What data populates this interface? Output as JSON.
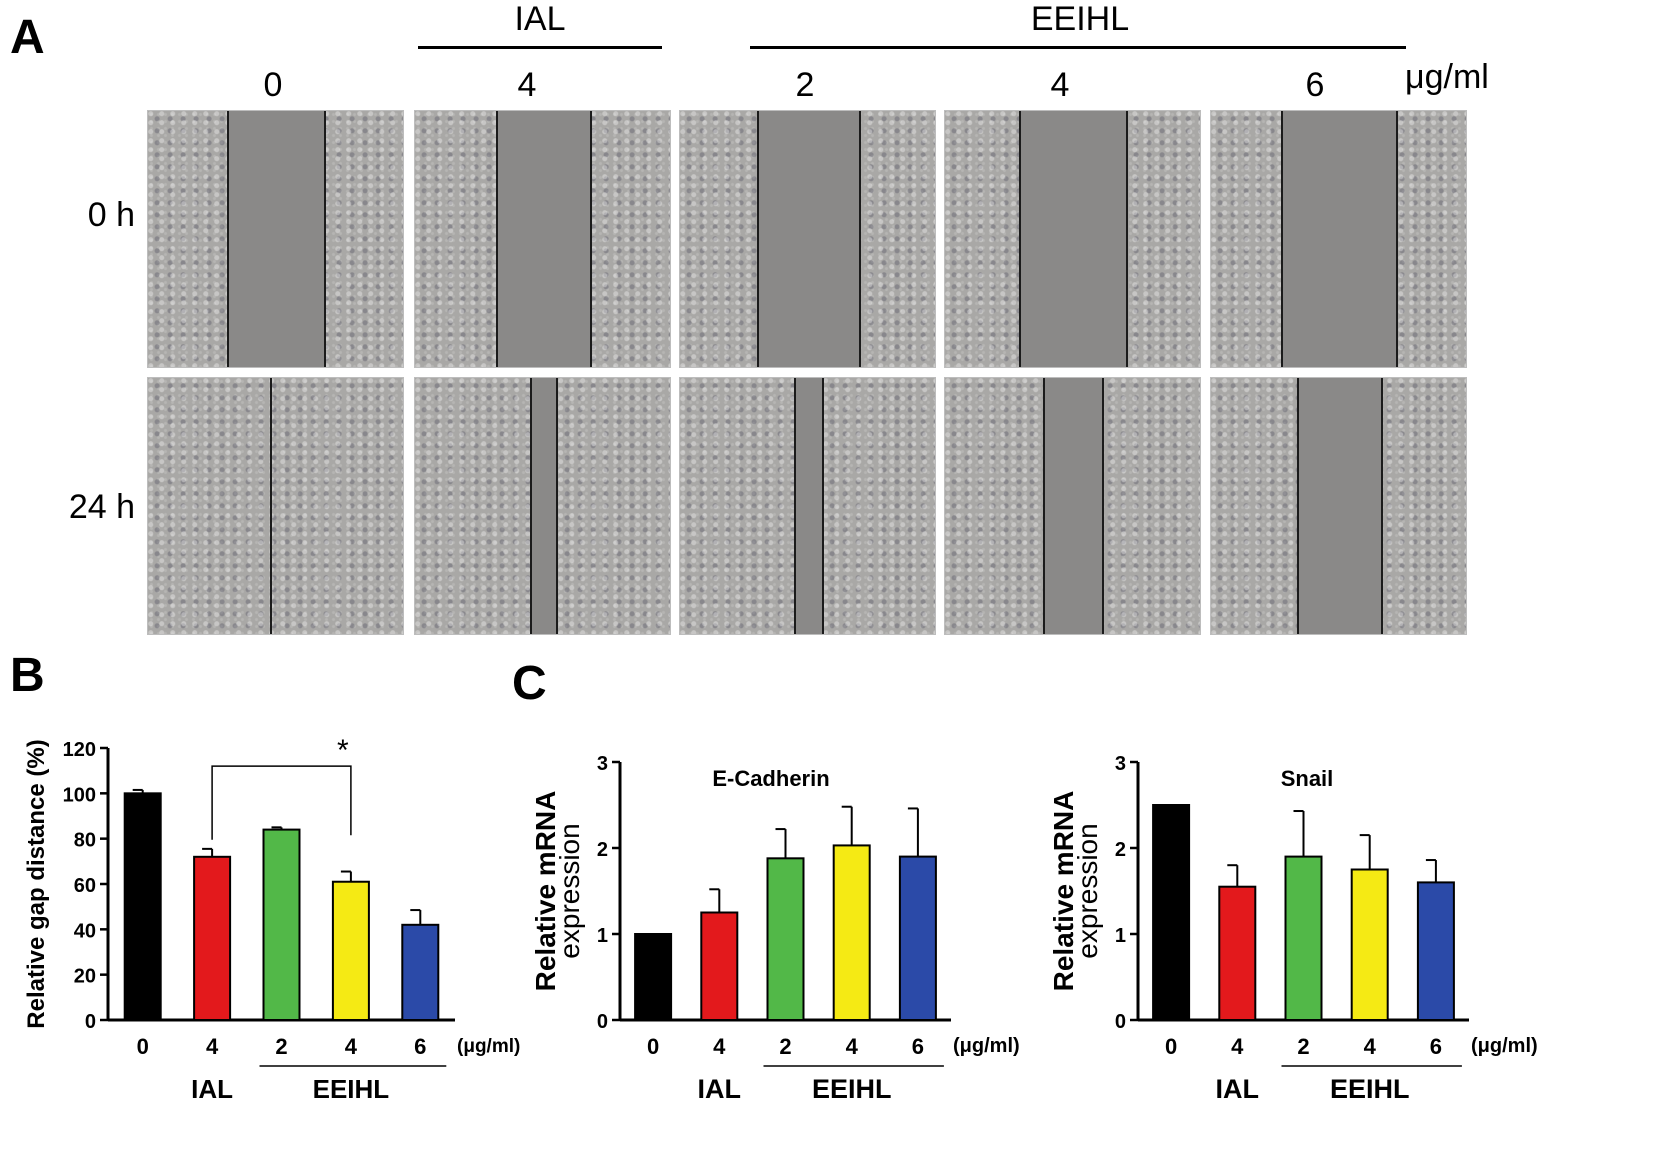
{
  "panels": {
    "a": "A",
    "b": "B",
    "c": "C"
  },
  "panel_a": {
    "group_ial": "IAL",
    "group_eeihl": "EEIHL",
    "doses": [
      "0",
      "4",
      "2",
      "4",
      "6"
    ],
    "unit": "μg/ml",
    "rows": [
      "0 h",
      "24 h"
    ],
    "gap_fraction_0h": [
      0.38,
      0.37,
      0.4,
      0.42,
      0.45
    ],
    "gap_fraction_24h": [
      0.0,
      0.1,
      0.11,
      0.23,
      0.33
    ]
  },
  "chart_data": [
    {
      "type": "bar",
      "ylabel": "Relative gap distance (%)",
      "categories": [
        "0",
        "4",
        "2",
        "4",
        "6"
      ],
      "unit_label": "(μg/ml)",
      "group_labels": {
        "ial": "IAL",
        "eeihl": "EEIHL"
      },
      "values": [
        100,
        72,
        84,
        61,
        42
      ],
      "errors": [
        1.5,
        3.5,
        1,
        4.5,
        6.5
      ],
      "colors": [
        "#000000",
        "#e3191c",
        "#52b848",
        "#f5ea14",
        "#2b4aa8"
      ],
      "ylim": [
        0,
        120
      ],
      "yticks": [
        0,
        20,
        40,
        60,
        80,
        100,
        120
      ],
      "significance": {
        "from": 1,
        "to": 3,
        "label": "*"
      }
    },
    {
      "type": "bar",
      "title": "E-Cadherin",
      "ylabel": [
        "Relative mRNA",
        "expression"
      ],
      "categories": [
        "0",
        "4",
        "2",
        "4",
        "6"
      ],
      "unit_label": "(μg/ml)",
      "group_labels": {
        "ial": "IAL",
        "eeihl": "EEIHL"
      },
      "values": [
        1.0,
        1.25,
        1.88,
        2.03,
        1.9
      ],
      "errors": [
        0,
        0.27,
        0.34,
        0.45,
        0.56
      ],
      "colors": [
        "#000000",
        "#e3191c",
        "#52b848",
        "#f5ea14",
        "#2b4aa8"
      ],
      "ylim": [
        0,
        3
      ],
      "yticks": [
        0,
        1,
        2,
        3
      ]
    },
    {
      "type": "bar",
      "title": "Snail",
      "ylabel": [
        "Relative mRNA",
        "expression"
      ],
      "categories": [
        "0",
        "4",
        "2",
        "4",
        "6"
      ],
      "unit_label": "(μg/ml)",
      "group_labels": {
        "ial": "IAL",
        "eeihl": "EEIHL"
      },
      "values": [
        2.5,
        1.55,
        1.9,
        1.75,
        1.6
      ],
      "errors": [
        0,
        0.25,
        0.53,
        0.4,
        0.26
      ],
      "colors": [
        "#000000",
        "#e3191c",
        "#52b848",
        "#f5ea14",
        "#2b4aa8"
      ],
      "ylim": [
        0,
        3
      ],
      "yticks": [
        0,
        1,
        2,
        3
      ]
    }
  ]
}
